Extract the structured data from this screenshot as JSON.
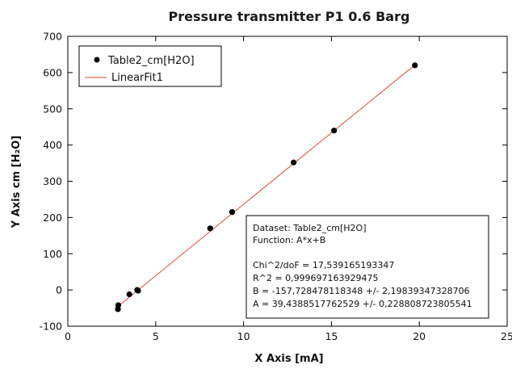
{
  "chart_data": {
    "type": "scatter",
    "title": "Pressure transmitter P1 0.6 Barg",
    "xlabel": "X Axis [mA]",
    "ylabel": "Y Axis cm [H₂O]",
    "xlim": [
      0,
      25
    ],
    "ylim": [
      -100,
      700
    ],
    "x_ticks": [
      0,
      5,
      10,
      15,
      20,
      25
    ],
    "y_ticks": [
      -100,
      0,
      100,
      200,
      300,
      400,
      500,
      600,
      700
    ],
    "grid": false,
    "legend_placement": "top-left",
    "series": [
      {
        "name": "Table2_cm[H2O]",
        "kind": "points",
        "color": "#000000",
        "x": [
          2.85,
          2.87,
          3.5,
          3.95,
          4.0,
          8.1,
          9.35,
          12.85,
          15.15,
          19.75
        ],
        "y": [
          -53,
          -42,
          -12,
          0,
          -2,
          170,
          215,
          352,
          440,
          620
        ]
      },
      {
        "name": "LinearFit1",
        "kind": "line",
        "color": "#e04a3a",
        "x": [
          2.85,
          19.75
        ],
        "y": [
          -45.36,
          621.05
        ]
      }
    ],
    "fit_box": {
      "lines": [
        "Dataset: Table2_cm[H2O]",
        "Function: A*x+B",
        "",
        "Chi^2/doF = 17,539165193347",
        "R^2 = 0,999697163929475",
        "B = -157,728478118348 +/- 2,19839347328706",
        "A = 39,4388517762529 +/- 0,228808723805541"
      ],
      "placement": "bottom-right"
    }
  }
}
